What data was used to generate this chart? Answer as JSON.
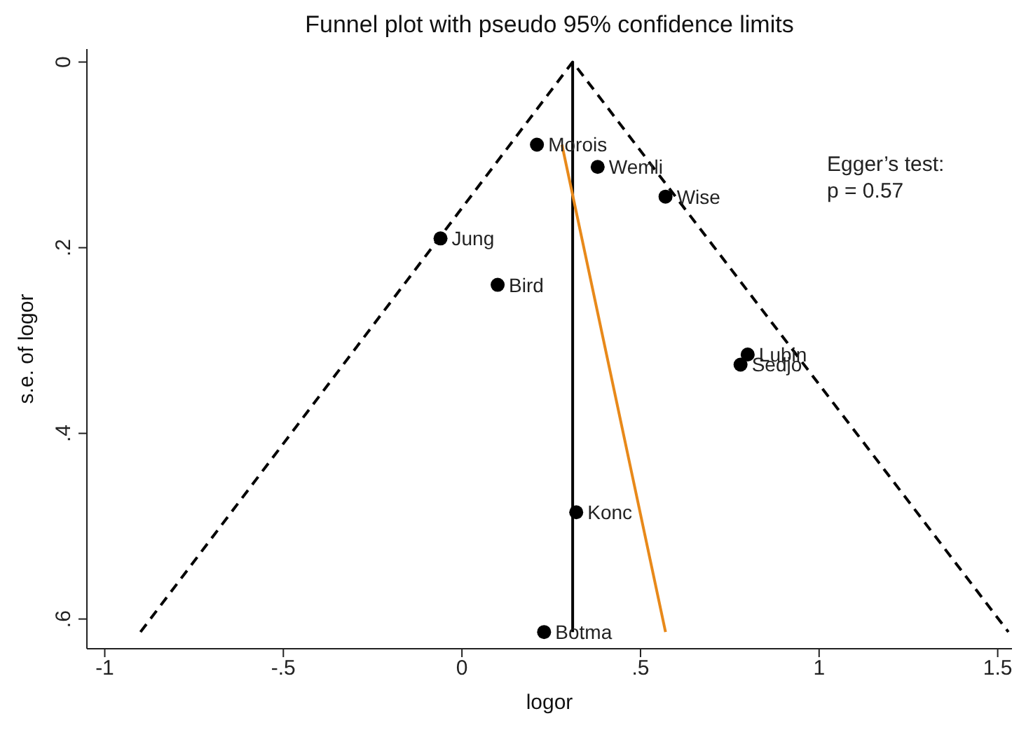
{
  "chart_data": {
    "type": "scatter",
    "title": "Funnel plot with pseudo 95% confidence limits",
    "xlabel": "logor",
    "ylabel": "s.e. of logor",
    "xlim": [
      -1.05,
      1.54
    ],
    "xticks": [
      {
        "value": -1,
        "label": "-1"
      },
      {
        "value": -0.5,
        "label": "-.5"
      },
      0,
      {
        "value": 0.5,
        "label": ".5"
      },
      1,
      1.5
    ],
    "ylim": [
      0.632,
      -0.014
    ],
    "yticks": [
      0,
      {
        "value": 0.2,
        "label": ".2"
      },
      {
        "value": 0.4,
        "label": ".4"
      },
      {
        "value": 0.6,
        "label": ".6"
      }
    ],
    "grid": false,
    "legend": false,
    "series": [
      {
        "type": "line",
        "color": "#000000",
        "line_style": "dashed",
        "marker": "none",
        "x": [
          -0.9,
          0.31,
          1.53
        ],
        "values": [
          0.614,
          0,
          0.614
        ]
      },
      {
        "type": "line",
        "color": "#000000",
        "line_style": "solid",
        "marker": "none",
        "x": [
          0.31,
          0.31
        ],
        "values": [
          0,
          0.614
        ]
      },
      {
        "type": "line",
        "color": "#e8891a",
        "line_style": "solid",
        "marker": "none",
        "x": [
          0.28,
          0.57
        ],
        "values": [
          0.089,
          0.614
        ]
      },
      {
        "type": "scatter",
        "color": "#000000",
        "marker": "circle",
        "x": [
          0.21,
          0.38,
          0.57,
          -0.06,
          0.1,
          0.8,
          0.78,
          0.32,
          0.23
        ],
        "values": [
          0.089,
          0.113,
          0.145,
          0.19,
          0.24,
          0.315,
          0.326,
          0.485,
          0.614
        ]
      }
    ],
    "annotations": [
      {
        "text": "Morois",
        "x": 0.21,
        "y": 0.089
      },
      {
        "text": "Wemli",
        "x": 0.38,
        "y": 0.113
      },
      {
        "text": "Wise",
        "x": 0.57,
        "y": 0.145
      },
      {
        "text": "Jung",
        "x": -0.06,
        "y": 0.19
      },
      {
        "text": "Bird",
        "x": 0.1,
        "y": 0.24
      },
      {
        "text": "Lubin",
        "x": 0.8,
        "y": 0.315
      },
      {
        "text": "Sedjo",
        "x": 0.78,
        "y": 0.326
      },
      {
        "text": "Konc",
        "x": 0.32,
        "y": 0.485
      },
      {
        "text": "Botma",
        "x": 0.23,
        "y": 0.614
      },
      "Egger’s test:",
      "p = 0.57"
    ]
  }
}
